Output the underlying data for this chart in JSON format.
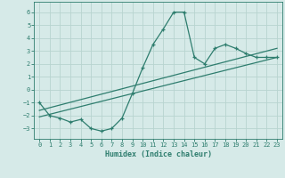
{
  "x": [
    0,
    1,
    2,
    3,
    4,
    5,
    6,
    7,
    8,
    9,
    10,
    11,
    12,
    13,
    14,
    15,
    16,
    17,
    18,
    19,
    20,
    21,
    22,
    23
  ],
  "y_jagged": [
    -1.0,
    -2.0,
    -2.2,
    -2.5,
    -2.3,
    -3.0,
    -3.2,
    -3.0,
    -2.2,
    -0.3,
    1.7,
    3.5,
    4.7,
    6.0,
    6.0,
    2.5,
    2.0,
    3.2,
    3.5,
    3.2,
    2.8,
    2.5,
    2.5,
    2.5
  ],
  "line1_x": [
    0,
    23
  ],
  "line1_y": [
    -1.6,
    3.2
  ],
  "line2_x": [
    0,
    23
  ],
  "line2_y": [
    -2.1,
    2.5
  ],
  "xlabel": "Humidex (Indice chaleur)",
  "ylim": [
    -3.8,
    6.8
  ],
  "xlim": [
    -0.5,
    23.5
  ],
  "yticks": [
    -3,
    -2,
    -1,
    0,
    1,
    2,
    3,
    4,
    5,
    6
  ],
  "xticks": [
    0,
    1,
    2,
    3,
    4,
    5,
    6,
    7,
    8,
    9,
    10,
    11,
    12,
    13,
    14,
    15,
    16,
    17,
    18,
    19,
    20,
    21,
    22,
    23
  ],
  "line_color": "#2e7d6e",
  "bg_color": "#d6eae8",
  "grid_color": "#b8d4d0"
}
